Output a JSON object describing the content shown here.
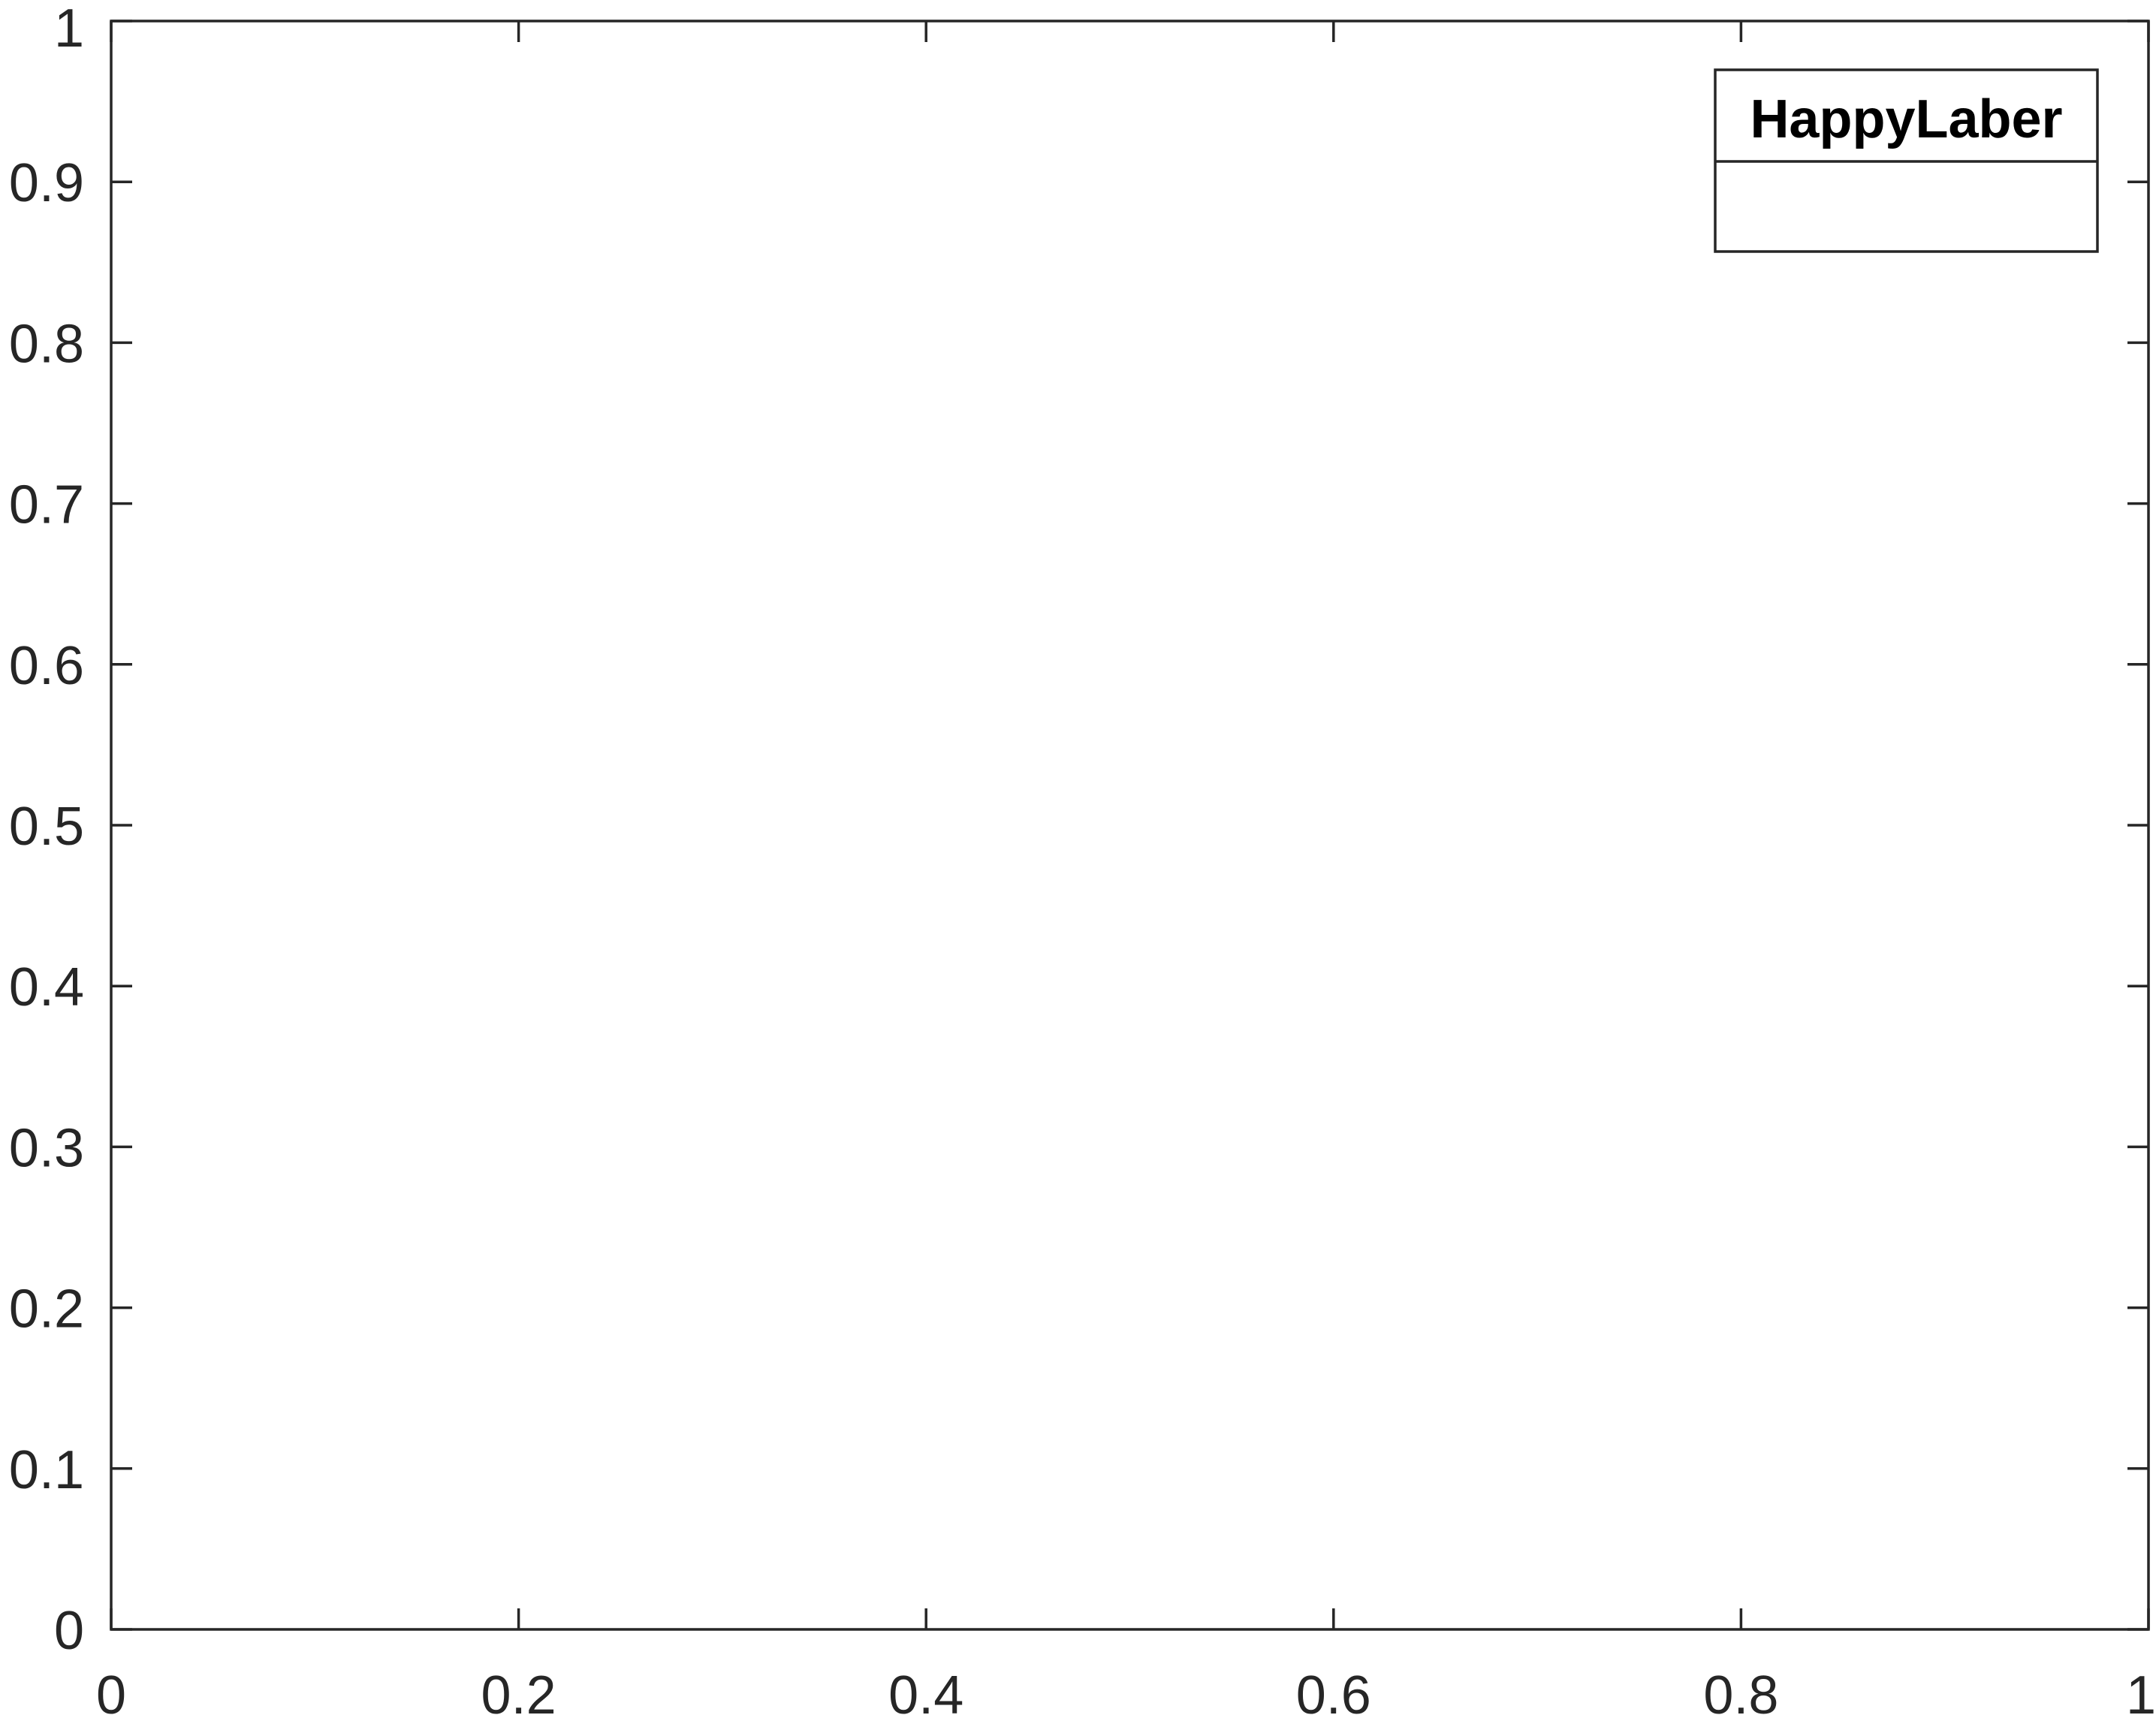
{
  "chart_data": {
    "type": "line",
    "title": "",
    "xlabel": "",
    "ylabel": "",
    "xlim": [
      0,
      1
    ],
    "ylim": [
      0,
      1
    ],
    "x_ticks": [
      0,
      0.2,
      0.4,
      0.6,
      0.8,
      1
    ],
    "x_tick_labels": [
      "0",
      "0.2",
      "0.4",
      "0.6",
      "0.8",
      "1"
    ],
    "y_ticks": [
      0,
      0.1,
      0.2,
      0.3,
      0.4,
      0.5,
      0.6,
      0.7,
      0.8,
      0.9,
      1
    ],
    "y_tick_labels": [
      "0",
      "0.1",
      "0.2",
      "0.3",
      "0.4",
      "0.5",
      "0.6",
      "0.7",
      "0.8",
      "0.9",
      "1"
    ],
    "grid": false,
    "series": [],
    "legend": {
      "title": "HappyLaber",
      "entries": [],
      "placement": "top-right"
    },
    "colors": {
      "axis": "#262626",
      "background": "#ffffff"
    }
  }
}
